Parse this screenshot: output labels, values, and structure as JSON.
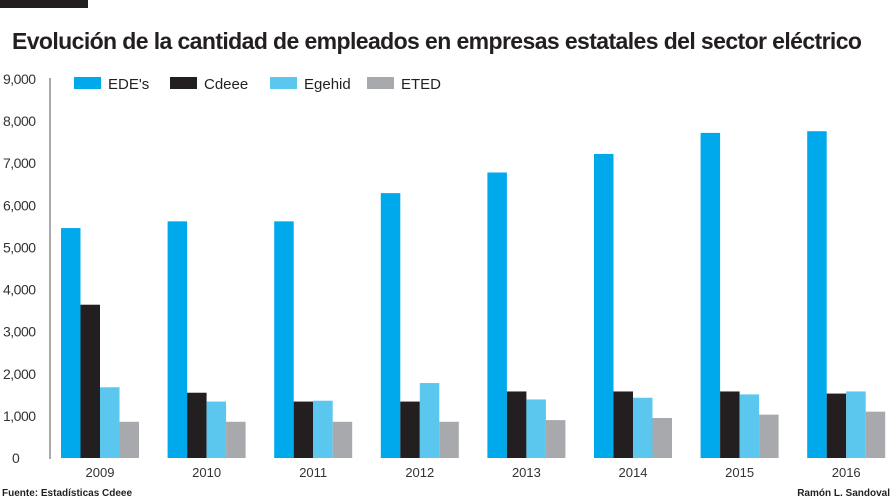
{
  "chart_data": {
    "type": "bar",
    "title": "Evolución de la cantidad de empleados en empresas estatales del sector eléctrico",
    "categories": [
      "2009",
      "2010",
      "2011",
      "2012",
      "2013",
      "2014",
      "2015",
      "2016"
    ],
    "series": [
      {
        "name": "EDE's",
        "color": "#00a9ec",
        "values": [
          5460,
          5620,
          5620,
          6290,
          6780,
          7220,
          7720,
          7760
        ]
      },
      {
        "name": "Cdeee",
        "color": "#231f20",
        "values": [
          3640,
          1550,
          1340,
          1340,
          1580,
          1580,
          1580,
          1530
        ]
      },
      {
        "name": "Egehid",
        "color": "#5bc6ee",
        "values": [
          1680,
          1340,
          1360,
          1780,
          1390,
          1430,
          1510,
          1580
        ]
      },
      {
        "name": "ETED",
        "color": "#a7a9ac",
        "values": [
          860,
          860,
          860,
          860,
          900,
          950,
          1030,
          1100
        ]
      }
    ],
    "yticks": [
      "0",
      "1,000",
      "2,000",
      "3,000",
      "4,000",
      "5,000",
      "6,000",
      "7,000",
      "8,000",
      "9,000"
    ],
    "ylim": [
      0,
      9000
    ],
    "legend": "top",
    "grid": false
  },
  "footer": {
    "source": "Fuente: Estadísticas Cdeee",
    "author": "Ramón L. Sandoval"
  }
}
